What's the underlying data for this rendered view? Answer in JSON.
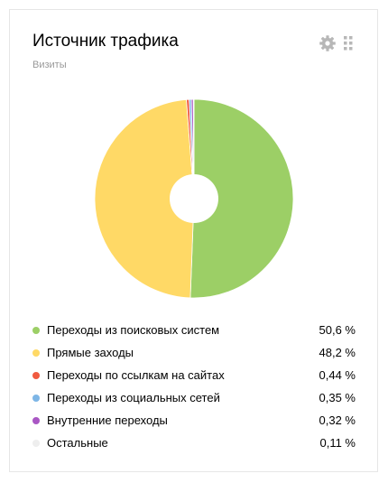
{
  "widget": {
    "title": "Источник трафика",
    "subtitle": "Визиты",
    "settings_icon": "gear-icon",
    "drag_icon": "drag-handle-icon"
  },
  "chart_data": {
    "type": "pie",
    "categories": [
      "Переходы из поисковых систем",
      "Прямые заходы",
      "Переходы по ссылкам на сайтах",
      "Переходы из социальных сетей",
      "Внутренние переходы",
      "Остальные"
    ],
    "values": [
      50.6,
      48.2,
      0.44,
      0.35,
      0.32,
      0.11
    ],
    "value_labels": [
      "50,6 %",
      "48,2 %",
      "0,44 %",
      "0,35 %",
      "0,32 %",
      "0,11 %"
    ],
    "colors": [
      "#9ccf66",
      "#ffd966",
      "#f05a40",
      "#7eb6e6",
      "#a957c4",
      "#eeeeee"
    ],
    "donut_hole": true,
    "legend_position": "bottom"
  }
}
